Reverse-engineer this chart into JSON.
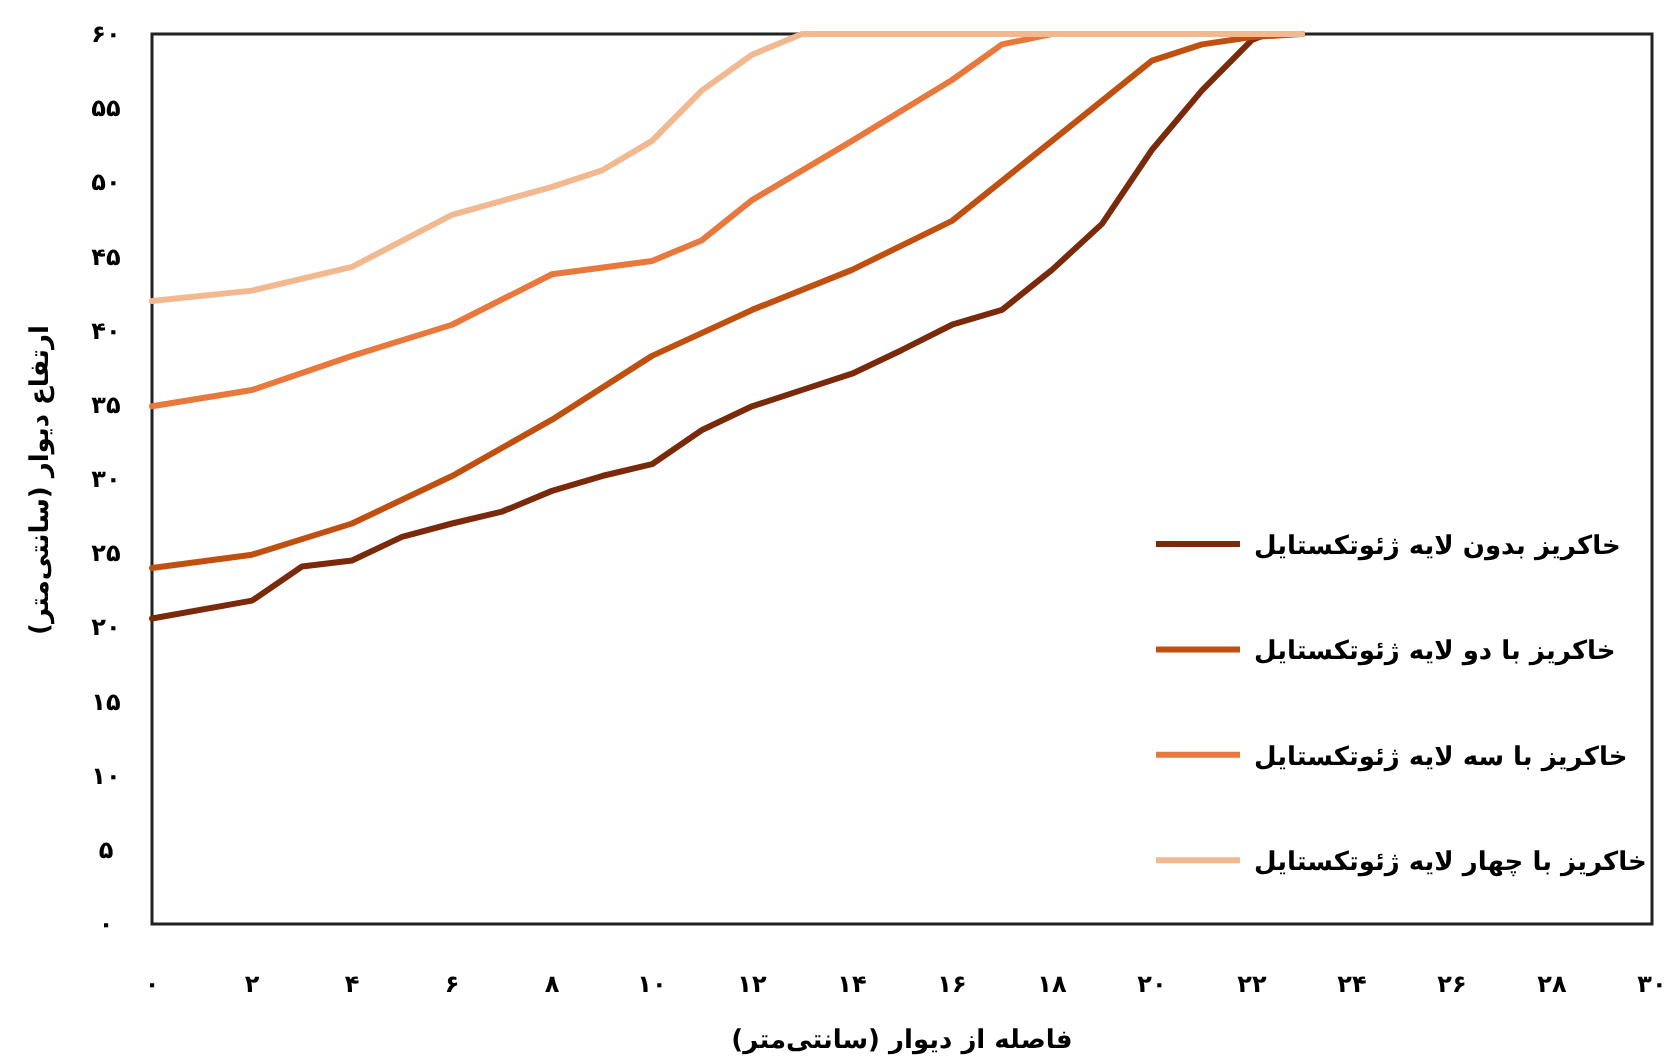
{
  "chart_data": {
    "type": "line",
    "xlabel": "فاصله از دیوار (سانتی‌متر)",
    "ylabel": "ارتفاع دیوار (سانتی‌متر)",
    "xlim": [
      0,
      30
    ],
    "ylim": [
      0,
      60
    ],
    "xticks": [
      {
        "value": 0,
        "label": "۰"
      },
      {
        "value": 2,
        "label": "۲"
      },
      {
        "value": 4,
        "label": "۴"
      },
      {
        "value": 6,
        "label": "۶"
      },
      {
        "value": 8,
        "label": "۸"
      },
      {
        "value": 10,
        "label": "۱۰"
      },
      {
        "value": 12,
        "label": "۱۲"
      },
      {
        "value": 14,
        "label": "۱۴"
      },
      {
        "value": 16,
        "label": "۱۶"
      },
      {
        "value": 18,
        "label": "۱۸"
      },
      {
        "value": 20,
        "label": "۲۰"
      },
      {
        "value": 22,
        "label": "۲۲"
      },
      {
        "value": 24,
        "label": "۲۴"
      },
      {
        "value": 26,
        "label": "۲۶"
      },
      {
        "value": 28,
        "label": "۲۸"
      },
      {
        "value": 30,
        "label": "۳۰"
      }
    ],
    "yticks": [
      {
        "value": 0,
        "label": "۰"
      },
      {
        "value": 5,
        "label": "۵"
      },
      {
        "value": 10,
        "label": "۱۰"
      },
      {
        "value": 15,
        "label": "۱۵"
      },
      {
        "value": 20,
        "label": "۲۰"
      },
      {
        "value": 25,
        "label": "۲۵"
      },
      {
        "value": 30,
        "label": "۳۰"
      },
      {
        "value": 35,
        "label": "۳۵"
      },
      {
        "value": 40,
        "label": "۴۰"
      },
      {
        "value": 45,
        "label": "۴۵"
      },
      {
        "value": 50,
        "label": "۵۰"
      },
      {
        "value": 55,
        "label": "۵۵"
      },
      {
        "value": 60,
        "label": "۶۰"
      }
    ],
    "legend": "bottom right",
    "series": [
      {
        "name": "خاکریز بدون لایه ژئوتکستایل",
        "color": "#7a2a0a",
        "x": [
          0,
          2,
          3,
          4,
          5,
          6,
          7,
          8,
          9,
          10,
          11,
          12,
          13,
          14,
          15,
          16,
          17,
          18,
          19,
          20,
          21,
          22,
          22.3,
          23
        ],
        "values": [
          20.6,
          21.8,
          24.1,
          24.5,
          26.1,
          27,
          27.8,
          29.2,
          30.2,
          31,
          33.3,
          34.9,
          36,
          37.1,
          38.7,
          40.4,
          41.4,
          44.1,
          47.2,
          52.2,
          56.2,
          59.6,
          60,
          60
        ]
      },
      {
        "name": "خاکریز با دو لایه ژئوتکستایل",
        "color": "#c0500f",
        "x": [
          0,
          2,
          4,
          6,
          8,
          10,
          12,
          14,
          16,
          18,
          20,
          21,
          22,
          23
        ],
        "values": [
          24,
          24.9,
          27,
          30.2,
          34,
          38.3,
          41.4,
          44.1,
          47.4,
          52.8,
          58.2,
          59.3,
          59.8,
          60
        ]
      },
      {
        "name": "خاکریز با سه لایه ژئوتکستایل",
        "color": "#e8783c",
        "x": [
          0,
          2,
          4,
          6,
          8,
          10,
          11,
          12,
          14,
          16,
          17,
          18,
          23
        ],
        "values": [
          34.9,
          36,
          38.3,
          40.4,
          43.8,
          44.7,
          46.1,
          48.8,
          52.8,
          56.9,
          59.3,
          60,
          60
        ]
      },
      {
        "name": "خاکریز با چهار لایه ژئوتکستایل",
        "color": "#f2b890",
        "x": [
          0,
          2,
          4,
          6,
          8,
          9,
          10,
          11,
          12,
          13,
          23
        ],
        "values": [
          42,
          42.7,
          44.3,
          47.8,
          49.7,
          50.8,
          52.8,
          56.2,
          58.6,
          60,
          60
        ]
      }
    ]
  }
}
